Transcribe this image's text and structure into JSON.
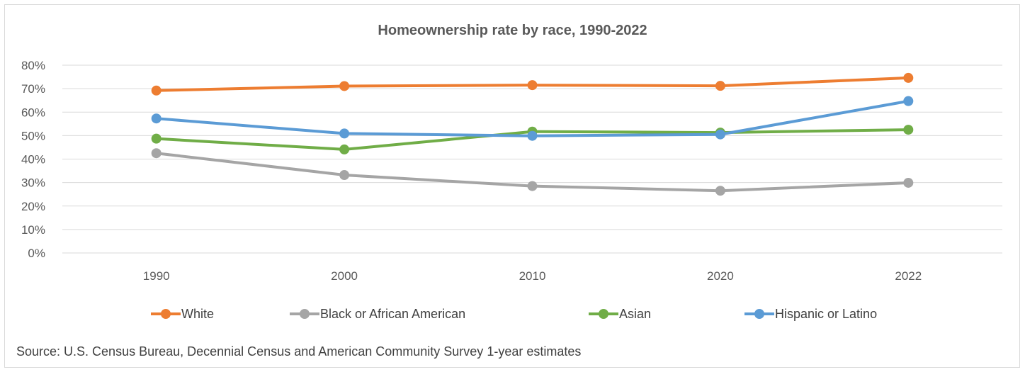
{
  "chart_data": {
    "type": "line",
    "title": "Homeownership rate by race, 1990-2022",
    "categories": [
      "1990",
      "2000",
      "2010",
      "2020",
      "2022"
    ],
    "y_ticks": [
      "0%",
      "10%",
      "20%",
      "30%",
      "40%",
      "50%",
      "60%",
      "70%",
      "80%"
    ],
    "ylim": [
      0,
      80
    ],
    "grid": true,
    "legend_position": "bottom",
    "series": [
      {
        "name": "White",
        "color": "#ed7d31",
        "values": [
          69.2,
          71.1,
          71.5,
          71.2,
          74.6
        ]
      },
      {
        "name": "Black or African American",
        "color": "#a5a5a5",
        "values": [
          42.5,
          33.2,
          28.5,
          26.5,
          29.9
        ]
      },
      {
        "name": "Asian",
        "color": "#70ad47",
        "values": [
          48.7,
          44.1,
          51.7,
          51.3,
          52.5
        ]
      },
      {
        "name": "Hispanic or Latino",
        "color": "#5b9bd5",
        "values": [
          57.3,
          50.9,
          49.9,
          50.5,
          64.7
        ]
      }
    ]
  },
  "source_text": "Source: U.S. Census Bureau, Decennial Census and American Community Survey 1-year estimates"
}
